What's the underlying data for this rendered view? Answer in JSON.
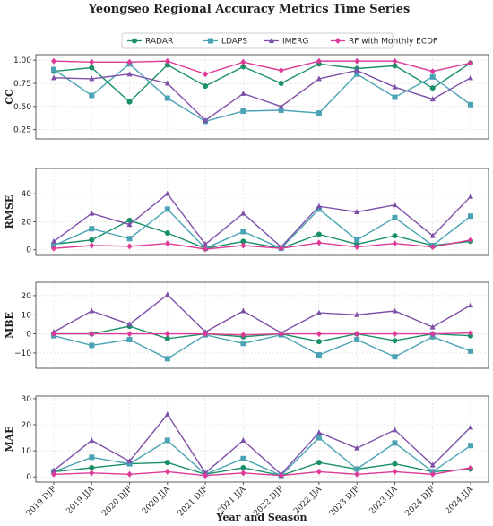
{
  "chart_data": {
    "type": "line",
    "title": "Yeongseo Regional Accuracy Metrics Time Series",
    "xlabel": "Year and Season",
    "categories": [
      "2019 DJF",
      "2019 JJA",
      "2020 DJF",
      "2020 JJA",
      "2021 DJF",
      "2021 JJA",
      "2022 DJF",
      "2022 JJA",
      "2023 DJF",
      "2023 JJA",
      "2024 DJF",
      "2024 JJA"
    ],
    "legend": {
      "position": "top-center",
      "items": [
        {
          "name": "RADAR",
          "color": "#1a9068",
          "marker": "circle"
        },
        {
          "name": "LDAPS",
          "color": "#4aa3b4",
          "marker": "square"
        },
        {
          "name": "IMERG",
          "color": "#7e4fa8",
          "marker": "triangle"
        },
        {
          "name": "RF with Monthly ECDF",
          "color": "#dd3a98",
          "marker": "diamond"
        }
      ]
    },
    "grid": true,
    "panels": [
      {
        "ylabel": "CC",
        "ylim": [
          0.15,
          1.06
        ],
        "yticks": [
          0.25,
          0.5,
          0.75,
          1.0
        ],
        "ytick_labels": [
          "0.25",
          "0.50",
          "0.75",
          "1.00"
        ],
        "series": [
          {
            "name": "RADAR",
            "values": [
              0.88,
              0.92,
              0.55,
              0.95,
              0.72,
              0.93,
              0.75,
              0.96,
              0.91,
              0.94,
              0.7,
              0.97
            ]
          },
          {
            "name": "LDAPS",
            "values": [
              0.9,
              0.62,
              0.96,
              0.59,
              0.34,
              0.45,
              0.46,
              0.43,
              0.85,
              0.6,
              0.82,
              0.52
            ]
          },
          {
            "name": "IMERG",
            "values": [
              0.81,
              0.8,
              0.85,
              0.75,
              0.35,
              0.64,
              0.5,
              0.8,
              0.89,
              0.71,
              0.58,
              0.81
            ]
          },
          {
            "name": "RF with Monthly ECDF",
            "values": [
              0.99,
              0.98,
              0.98,
              0.99,
              0.85,
              0.98,
              0.89,
              0.99,
              0.99,
              0.99,
              0.88,
              0.97
            ]
          }
        ]
      },
      {
        "ylabel": "RMSE",
        "ylim": [
          -4,
          58
        ],
        "yticks": [
          0,
          20,
          40
        ],
        "ytick_labels": [
          "0",
          "20",
          "40"
        ],
        "series": [
          {
            "name": "RADAR",
            "values": [
              4,
              7,
              21,
              12,
              1,
              6,
              1,
              11,
              4,
              10,
              3,
              6
            ]
          },
          {
            "name": "LDAPS",
            "values": [
              3,
              15,
              8,
              29,
              1,
              13,
              1,
              29,
              7,
              23,
              3,
              24
            ]
          },
          {
            "name": "IMERG",
            "values": [
              6,
              26,
              18,
              40,
              4,
              26,
              2,
              31,
              27,
              32,
              10,
              38
            ]
          },
          {
            "name": "RF with Monthly ECDF",
            "values": [
              1,
              3,
              2.5,
              4.5,
              0.5,
              3,
              1,
              5,
              2,
              4.5,
              2,
              7
            ]
          }
        ]
      },
      {
        "ylabel": "MBE",
        "ylim": [
          -18,
          27
        ],
        "yticks": [
          -10,
          0,
          10,
          20
        ],
        "ytick_labels": [
          "−10",
          "0",
          "10",
          "20"
        ],
        "series": [
          {
            "name": "RADAR",
            "values": [
              0,
              0,
              4,
              -2.5,
              0,
              -1.5,
              0,
              -4,
              0,
              -3.5,
              0,
              -1
            ]
          },
          {
            "name": "LDAPS",
            "values": [
              -1,
              -6,
              -3,
              -13,
              -0.5,
              -5,
              -0.5,
              -11,
              -3,
              -12,
              -1.5,
              -9
            ]
          },
          {
            "name": "IMERG",
            "values": [
              1,
              12,
              5,
              20.5,
              1,
              12,
              0.5,
              11,
              10,
              12,
              3.5,
              15
            ]
          },
          {
            "name": "RF with Monthly ECDF",
            "values": [
              0,
              0,
              0,
              0,
              0,
              -0.5,
              0,
              0,
              0,
              0,
              0,
              0.5
            ]
          }
        ]
      },
      {
        "ylabel": "MAE",
        "ylim": [
          -2,
          31
        ],
        "yticks": [
          0,
          10,
          20,
          30
        ],
        "ytick_labels": [
          "0",
          "10",
          "20",
          "30"
        ],
        "series": [
          {
            "name": "RADAR",
            "values": [
              2,
              3.5,
              5,
              5.5,
              1,
              3.5,
              0.5,
              5.5,
              3,
              5,
              2,
              3
            ]
          },
          {
            "name": "LDAPS",
            "values": [
              2,
              7.5,
              5,
              14,
              1,
              7,
              0.5,
              15,
              3,
              13,
              2,
              12
            ]
          },
          {
            "name": "IMERG",
            "values": [
              2.5,
              14,
              6,
              24,
              1.5,
              14,
              1,
              17,
              11,
              18,
              4.5,
              19
            ]
          },
          {
            "name": "RF with Monthly ECDF",
            "values": [
              1,
              1.5,
              1,
              2,
              0.5,
              1.5,
              0.5,
              2,
              1,
              2,
              1,
              3.5
            ]
          }
        ]
      }
    ]
  }
}
